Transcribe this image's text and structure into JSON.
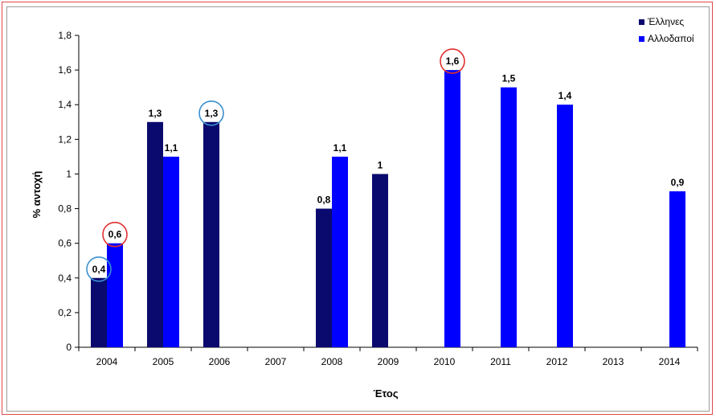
{
  "chart_data": {
    "type": "bar",
    "title": "",
    "xlabel": "Έτος",
    "ylabel": "% αντοχή",
    "ylim": [
      0,
      1.8
    ],
    "yticks": [
      "0",
      "0,2",
      "0,4",
      "0,6",
      "0,8",
      "1",
      "1,2",
      "1,4",
      "1,6",
      "1,8"
    ],
    "categories": [
      "2004",
      "2005",
      "2006",
      "2007",
      "2008",
      "2009",
      "2010",
      "2011",
      "2012",
      "2013",
      "2014"
    ],
    "series": [
      {
        "name": "Έλληνες",
        "color": "#0a0a6e",
        "values": [
          0.4,
          1.3,
          1.3,
          null,
          0.8,
          1,
          null,
          null,
          null,
          null,
          null
        ],
        "labels": [
          "0,4",
          "1,3",
          "1,3",
          "",
          "0,8",
          "1",
          "",
          "",
          "",
          "",
          ""
        ]
      },
      {
        "name": "Αλλοδαποί",
        "color": "#0000ff",
        "values": [
          0.6,
          1.1,
          null,
          null,
          1.1,
          null,
          1.6,
          1.5,
          1.4,
          null,
          0.9
        ],
        "labels": [
          "0,6",
          "1,1",
          "",
          "",
          "1,1",
          "",
          "1,6",
          "1,5",
          "1,4",
          "",
          "0,9"
        ]
      }
    ],
    "grid": false,
    "legend_position": "top-right",
    "highlight_circles": [
      {
        "series": 0,
        "category": "2004",
        "color": "#3a8fd0"
      },
      {
        "series": 1,
        "category": "2004",
        "color": "#e03030"
      },
      {
        "series": 0,
        "category": "2006",
        "color": "#3a8fd0"
      },
      {
        "series": 1,
        "category": "2010",
        "color": "#e03030"
      }
    ]
  }
}
